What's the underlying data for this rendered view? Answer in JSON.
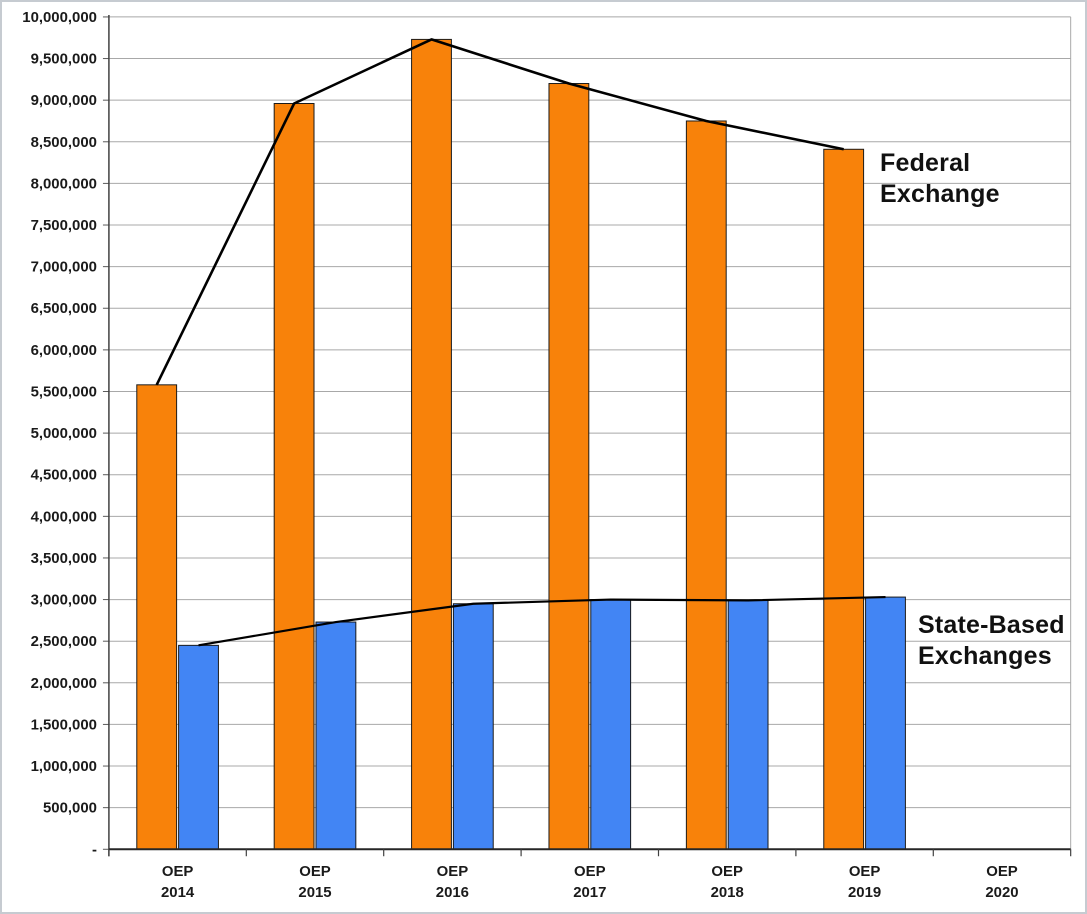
{
  "chart_data": {
    "type": "bar",
    "subtype": "grouped-bars-with-trend-lines",
    "title": "",
    "xlabel": "",
    "ylabel": "",
    "categories": [
      "OEP 2014",
      "OEP 2015",
      "OEP 2016",
      "OEP 2017",
      "OEP 2018",
      "OEP 2019",
      "OEP 2020"
    ],
    "series": [
      {
        "name": "Federal Exchange",
        "color": "#F8820A",
        "values": [
          5580000,
          8960000,
          9730000,
          9200000,
          8750000,
          8410000,
          null
        ]
      },
      {
        "name": "State-Based Exchanges",
        "color": "#4285F4",
        "values": [
          2450000,
          2730000,
          2950000,
          3000000,
          2990000,
          3030000,
          null
        ]
      }
    ],
    "trend_line_color": "#000000",
    "ylim": [
      0,
      10000000
    ],
    "y_tick_interval": 500000,
    "y_tick_labels": [
      "-",
      "500,000",
      "1,000,000",
      "1,500,000",
      "2,000,000",
      "2,500,000",
      "3,000,000",
      "3,500,000",
      "4,000,000",
      "4,500,000",
      "5,000,000",
      "5,500,000",
      "6,000,000",
      "6,500,000",
      "7,000,000",
      "7,500,000",
      "8,000,000",
      "8,500,000",
      "9,000,000",
      "9,500,000",
      "10,000,000"
    ],
    "grid": true,
    "legend_position": "inline-right"
  }
}
